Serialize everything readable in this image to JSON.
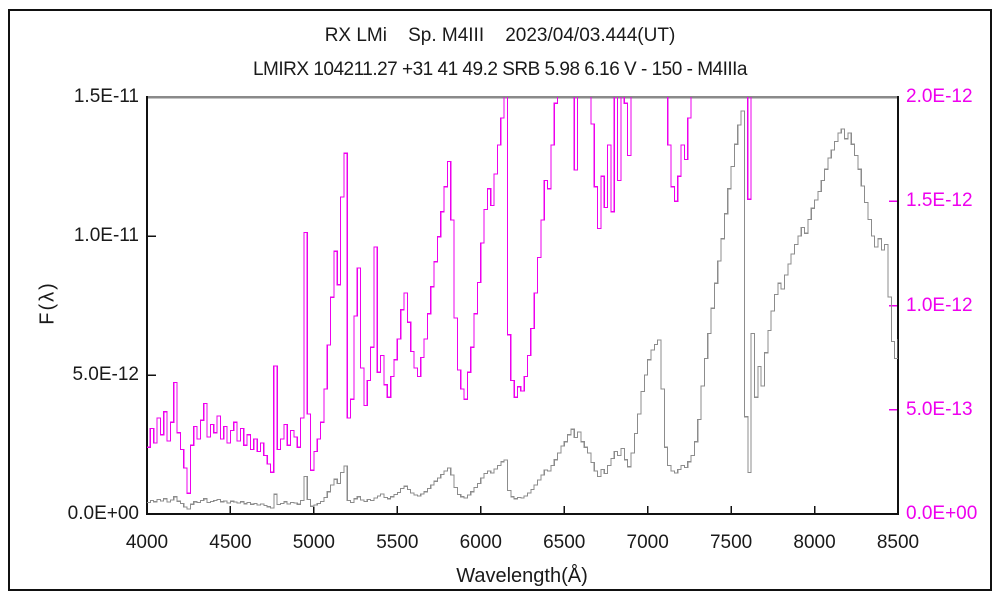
{
  "header": {
    "title_line1": "RX LMi    Sp. M4III    2023/04/03.444(UT)",
    "title_line2": "LMIRX 104211.27 +31 41 49.2 SRB 5.98 6.16 V - 150 - M4IIIa"
  },
  "colors": {
    "magenta": "#ee00ee",
    "gray_trace": "#8c8c8c",
    "axis_black": "#111111",
    "top_border_gray": "#8a8a8a",
    "text": "#1a1a1a"
  },
  "chart_data": {
    "type": "line",
    "title": "RX LMi    Sp. M4III    2023/04/03.444(UT)",
    "subtitle": "LMIRX 104211.27 +31 41 49.2 SRB 5.98 6.16 V - 150 - M4IIIa",
    "x_axis": {
      "label": "Wavelength(Å)",
      "min": 4000,
      "max": 8500,
      "tick_values": [
        4000,
        4500,
        5000,
        5500,
        6000,
        6500,
        7000,
        7500,
        8000,
        8500
      ],
      "tick_labels": [
        "4000",
        "4500",
        "5000",
        "5500",
        "6000",
        "6500",
        "7000",
        "7500",
        "8000",
        "8500"
      ]
    },
    "left_axis": {
      "label": "F(λ)",
      "tick_labels_bottom_to_top": [
        "0.0E+00",
        "5.0E-12",
        "1.0E-11",
        "1.5E-11"
      ],
      "max_in_units": 15,
      "unit": "1e-12"
    },
    "right_axis": {
      "tick_labels_bottom_to_top": [
        "0.0E+00",
        "5.0E-13",
        "1.0E-12",
        "1.5E-12",
        "2.0E-12"
      ],
      "max_in_units": 20,
      "unit": "1e-13"
    },
    "x_start": 4000,
    "x_step": 20,
    "x_end": 8500,
    "grid": false,
    "series": [
      {
        "name": "spectrum-full-scale",
        "axis": "left",
        "color": "#8c8c8c",
        "unit": "1e-12",
        "values": [
          0.42,
          0.48,
          0.44,
          0.52,
          0.47,
          0.55,
          0.43,
          0.5,
          0.62,
          0.46,
          0.38,
          0.25,
          0.18,
          0.35,
          0.44,
          0.41,
          0.49,
          0.55,
          0.42,
          0.45,
          0.48,
          0.52,
          0.44,
          0.47,
          0.4,
          0.46,
          0.43,
          0.4,
          0.44,
          0.37,
          0.42,
          0.35,
          0.38,
          0.32,
          0.36,
          0.3,
          0.26,
          0.22,
          0.71,
          0.34,
          0.38,
          0.44,
          0.36,
          0.42,
          0.4,
          0.35,
          0.48,
          1.35,
          0.52,
          0.28,
          0.33,
          0.38,
          0.45,
          0.6,
          0.8,
          1.05,
          1.25,
          1.1,
          1.5,
          1.73,
          0.48,
          0.42,
          0.55,
          0.62,
          0.5,
          0.45,
          0.52,
          0.48,
          0.58,
          0.65,
          0.72,
          0.6,
          0.55,
          0.62,
          0.7,
          0.78,
          0.92,
          1.0,
          0.88,
          0.75,
          0.68,
          0.65,
          0.72,
          0.8,
          0.92,
          1.05,
          1.18,
          1.3,
          1.42,
          1.55,
          1.65,
          1.4,
          0.95,
          0.7,
          0.62,
          0.58,
          0.68,
          0.8,
          0.95,
          1.1,
          1.3,
          1.45,
          1.55,
          1.48,
          1.62,
          1.75,
          1.88,
          1.94,
          0.85,
          0.62,
          0.55,
          0.6,
          0.58,
          0.65,
          0.75,
          0.88,
          1.05,
          1.22,
          1.4,
          1.58,
          1.55,
          1.75,
          1.95,
          2.2,
          2.45,
          2.6,
          2.85,
          3.05,
          2.75,
          2.95,
          2.6,
          2.4,
          2.2,
          1.85,
          1.55,
          1.35,
          1.6,
          1.45,
          1.75,
          2.0,
          2.25,
          2.1,
          2.35,
          1.95,
          1.7,
          2.2,
          2.9,
          3.6,
          4.4,
          5.0,
          5.55,
          5.9,
          6.1,
          6.26,
          4.5,
          2.4,
          1.75,
          1.55,
          1.48,
          1.6,
          1.75,
          1.68,
          1.88,
          2.1,
          2.6,
          3.4,
          4.6,
          5.6,
          6.5,
          7.4,
          8.3,
          9.1,
          9.9,
          10.8,
          11.7,
          12.5,
          13.3,
          14.0,
          14.5,
          3.5,
          1.5,
          6.5,
          4.2,
          5.3,
          4.6,
          5.8,
          6.6,
          7.3,
          7.9,
          8.3,
          8.1,
          8.6,
          9.0,
          9.35,
          9.7,
          10.0,
          10.3,
          10.1,
          10.6,
          11.0,
          11.3,
          11.6,
          12.0,
          12.4,
          12.8,
          13.1,
          13.4,
          13.7,
          13.85,
          13.5,
          13.7,
          13.3,
          12.9,
          12.4,
          11.8,
          11.2,
          10.6,
          10.0,
          9.6,
          9.9,
          9.5,
          9.7,
          7.8,
          6.2,
          5.6,
          6.3
        ]
      },
      {
        "name": "spectrum-zoomed-scale",
        "axis": "right",
        "color": "#ee00ee",
        "unit": "1e-13",
        "values": [
          3.2,
          4.1,
          3.4,
          4.6,
          3.8,
          4.9,
          3.5,
          4.4,
          6.3,
          3.9,
          3.1,
          2.2,
          1.0,
          3.3,
          4.2,
          3.6,
          4.5,
          5.3,
          3.7,
          4.3,
          3.9,
          4.7,
          3.6,
          4.2,
          3.4,
          4.0,
          4.4,
          3.5,
          4.1,
          3.3,
          3.8,
          3.1,
          3.6,
          3.0,
          3.4,
          2.8,
          2.4,
          2.0,
          7.1,
          3.1,
          3.6,
          4.3,
          3.3,
          4.0,
          3.7,
          3.2,
          4.6,
          13.5,
          4.8,
          2.1,
          3.0,
          3.6,
          4.4,
          6.0,
          8.1,
          10.4,
          12.6,
          11.0,
          15.2,
          17.3,
          4.6,
          5.5,
          9.5,
          11.8,
          7.0,
          5.2,
          6.4,
          8.0,
          12.8,
          6.8,
          7.6,
          6.2,
          5.6,
          6.6,
          7.4,
          8.4,
          9.8,
          10.6,
          9.2,
          7.8,
          7.0,
          6.6,
          7.5,
          8.4,
          9.6,
          10.9,
          12.1,
          13.3,
          14.5,
          15.7,
          16.9,
          14.1,
          9.4,
          6.9,
          6.0,
          5.5,
          6.8,
          8.0,
          9.6,
          11.1,
          13.0,
          14.6,
          15.6,
          14.8,
          16.3,
          17.7,
          19.0,
          21.5,
          8.6,
          6.4,
          5.6,
          6.1,
          5.9,
          6.6,
          7.6,
          8.9,
          10.6,
          12.3,
          14.1,
          16.0,
          15.6,
          17.7,
          19.7,
          22.3,
          24.8,
          26.3,
          28.8,
          30.9,
          16.5,
          29.9,
          26.3,
          24.3,
          22.3,
          18.7,
          15.7,
          13.7,
          16.2,
          14.7,
          17.7,
          14.5,
          22.8,
          16.0,
          23.8,
          19.7,
          17.2,
          22.3,
          29.4,
          36.4,
          44.5,
          50.6,
          56.2,
          59.7,
          61.7,
          63.3,
          45.5,
          24.3,
          17.7,
          15.7,
          15.0,
          16.2,
          17.7,
          17.0,
          19.0,
          21.2,
          26.3,
          34.4,
          46.5,
          56.6,
          65.7,
          74.8,
          83.9,
          92.0,
          100,
          109,
          118,
          126,
          134,
          141,
          146,
          30,
          15.1,
          65,
          42,
          53,
          46,
          58,
          66,
          73,
          79,
          83,
          81,
          86,
          90,
          93,
          97,
          100,
          103,
          101,
          106,
          110,
          113,
          116,
          120,
          124,
          128,
          131,
          134,
          137,
          138,
          135,
          137,
          133,
          129,
          124,
          118,
          112,
          106,
          100,
          96,
          99,
          95,
          97,
          78,
          62,
          56,
          63
        ]
      }
    ]
  }
}
